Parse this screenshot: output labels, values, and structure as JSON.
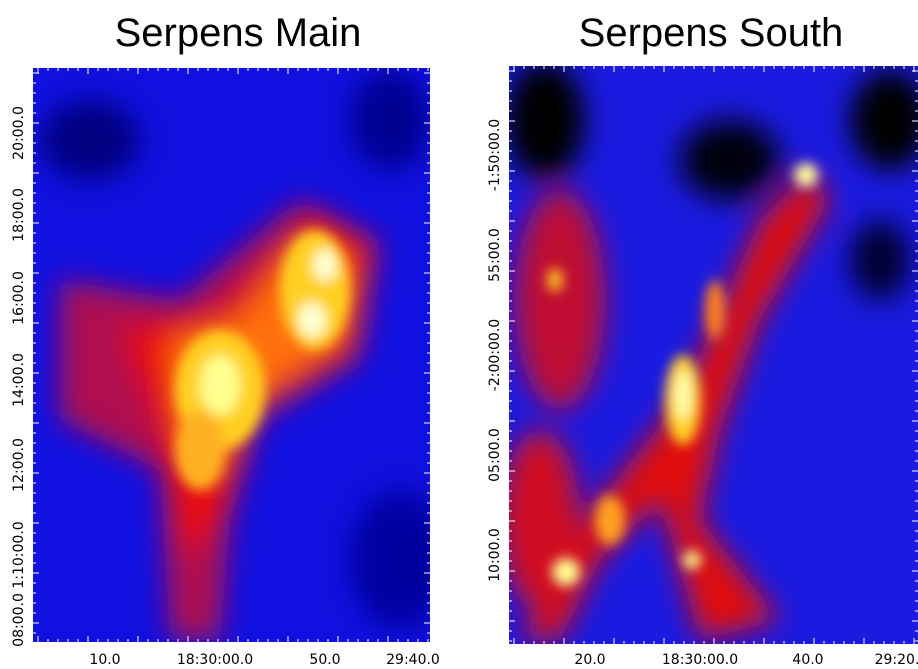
{
  "panels": [
    {
      "title": "Serpens Main",
      "x_tick_labels": [
        "10.0",
        "18:30:00.0",
        "50.0",
        "29:40.0"
      ],
      "y_tick_labels": [
        "08:00.0",
        "1:10:00.0",
        "12:00.0",
        "14:00.0",
        "16:00.0",
        "18:00.0",
        "20:00.0"
      ]
    },
    {
      "title": "Serpens South",
      "x_tick_labels": [
        "20.0",
        "18:30:00.0",
        "40.0",
        "29:20."
      ],
      "y_tick_labels": [
        "10:00.0",
        "05:00.0",
        "-2:00:00.0",
        "55:00.0",
        "-1:50:00.0"
      ]
    }
  ]
}
